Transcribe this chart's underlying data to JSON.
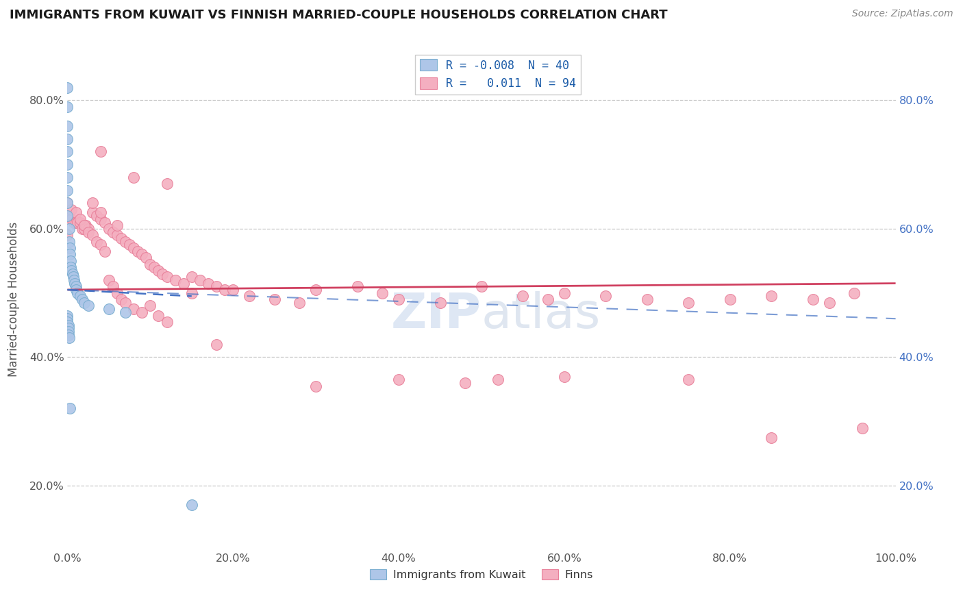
{
  "title": "IMMIGRANTS FROM KUWAIT VS FINNISH MARRIED-COUPLE HOUSEHOLDS CORRELATION CHART",
  "source": "Source: ZipAtlas.com",
  "ylabel": "Married-couple Households",
  "xlim": [
    0.0,
    1.0
  ],
  "ylim": [
    0.1,
    0.88
  ],
  "xticks": [
    0.0,
    0.2,
    0.4,
    0.6,
    0.8,
    1.0
  ],
  "xtick_labels": [
    "0.0%",
    "20.0%",
    "40.0%",
    "60.0%",
    "80.0%",
    "100.0%"
  ],
  "yticks": [
    0.2,
    0.4,
    0.6,
    0.8
  ],
  "ytick_labels": [
    "20.0%",
    "40.0%",
    "60.0%",
    "80.0%"
  ],
  "blue_R": -0.008,
  "blue_N": 40,
  "pink_R": 0.011,
  "pink_N": 94,
  "blue_color": "#aec6e8",
  "pink_color": "#f4afc0",
  "blue_edge": "#7aaed0",
  "pink_edge": "#e8809a",
  "trend_blue": "#4472c4",
  "trend_pink": "#d04060",
  "background_color": "#ffffff",
  "grid_color": "#c8c8c8",
  "blue_x": [
    0.0,
    0.0,
    0.0,
    0.0,
    0.0,
    0.0,
    0.0,
    0.0,
    0.0,
    0.0,
    0.002,
    0.002,
    0.003,
    0.003,
    0.004,
    0.004,
    0.005,
    0.006,
    0.007,
    0.008,
    0.009,
    0.01,
    0.01,
    0.012,
    0.015,
    0.018,
    0.02,
    0.025,
    0.05,
    0.07,
    0.0,
    0.0,
    0.0,
    0.001,
    0.001,
    0.001,
    0.001,
    0.002,
    0.003,
    0.15
  ],
  "blue_y": [
    0.82,
    0.79,
    0.76,
    0.74,
    0.72,
    0.7,
    0.68,
    0.66,
    0.64,
    0.62,
    0.6,
    0.58,
    0.57,
    0.56,
    0.55,
    0.54,
    0.535,
    0.53,
    0.525,
    0.52,
    0.515,
    0.51,
    0.505,
    0.5,
    0.495,
    0.49,
    0.485,
    0.48,
    0.475,
    0.47,
    0.465,
    0.46,
    0.455,
    0.45,
    0.445,
    0.44,
    0.435,
    0.43,
    0.32,
    0.17
  ],
  "pink_x": [
    0.0,
    0.002,
    0.005,
    0.008,
    0.01,
    0.012,
    0.015,
    0.018,
    0.02,
    0.022,
    0.025,
    0.03,
    0.03,
    0.035,
    0.04,
    0.04,
    0.045,
    0.05,
    0.055,
    0.06,
    0.06,
    0.065,
    0.07,
    0.075,
    0.08,
    0.085,
    0.09,
    0.095,
    0.1,
    0.105,
    0.11,
    0.115,
    0.12,
    0.13,
    0.14,
    0.15,
    0.16,
    0.17,
    0.18,
    0.19,
    0.0,
    0.005,
    0.01,
    0.015,
    0.02,
    0.025,
    0.03,
    0.035,
    0.04,
    0.045,
    0.05,
    0.055,
    0.06,
    0.065,
    0.07,
    0.08,
    0.09,
    0.1,
    0.11,
    0.12,
    0.15,
    0.18,
    0.2,
    0.22,
    0.25,
    0.28,
    0.3,
    0.35,
    0.38,
    0.4,
    0.45,
    0.5,
    0.55,
    0.58,
    0.6,
    0.65,
    0.7,
    0.75,
    0.8,
    0.85,
    0.9,
    0.92,
    0.95,
    0.48,
    0.52,
    0.3,
    0.4,
    0.6,
    0.75,
    0.85,
    0.12,
    0.08,
    0.04,
    0.96
  ],
  "pink_y": [
    0.59,
    0.62,
    0.615,
    0.61,
    0.61,
    0.61,
    0.61,
    0.6,
    0.6,
    0.605,
    0.6,
    0.625,
    0.64,
    0.62,
    0.615,
    0.625,
    0.61,
    0.6,
    0.595,
    0.59,
    0.605,
    0.585,
    0.58,
    0.575,
    0.57,
    0.565,
    0.56,
    0.555,
    0.545,
    0.54,
    0.535,
    0.53,
    0.525,
    0.52,
    0.515,
    0.525,
    0.52,
    0.515,
    0.51,
    0.505,
    0.64,
    0.63,
    0.625,
    0.615,
    0.605,
    0.595,
    0.59,
    0.58,
    0.575,
    0.565,
    0.52,
    0.51,
    0.5,
    0.49,
    0.485,
    0.475,
    0.47,
    0.48,
    0.465,
    0.455,
    0.5,
    0.42,
    0.505,
    0.495,
    0.49,
    0.485,
    0.505,
    0.51,
    0.5,
    0.49,
    0.485,
    0.51,
    0.495,
    0.49,
    0.5,
    0.495,
    0.49,
    0.485,
    0.49,
    0.495,
    0.49,
    0.485,
    0.5,
    0.36,
    0.365,
    0.355,
    0.365,
    0.37,
    0.365,
    0.275,
    0.67,
    0.68,
    0.72,
    0.29
  ]
}
